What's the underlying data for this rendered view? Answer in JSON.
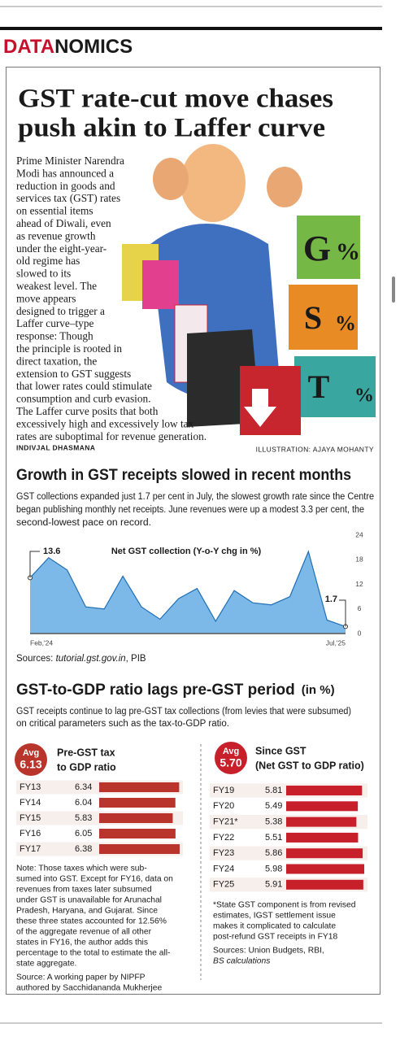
{
  "header": {
    "brand_red": "DATA",
    "brand_rest": "NOMICS"
  },
  "article": {
    "headline": [
      "GST rate-cut move chases",
      "push akin to Laffer curve"
    ],
    "body": [
      "Prime Minister Narendra",
      "Modi has announced a",
      "reduction in goods and",
      "services tax (GST) rates",
      "on essential items",
      "ahead of Diwali, even",
      "as revenue growth",
      "under the eight-year-",
      "old regime has",
      "slowed to its",
      "weakest level. The",
      "move appears",
      "designed to trigger a",
      "Laffer curve–type",
      "response: Though",
      "the principle is rooted in",
      "direct taxation, the",
      "extension to GST suggests",
      "that lower rates could stimulate",
      "consumption and curb evasion.",
      "The Laffer curve posits that both",
      "excessively high and excessively low tax",
      "rates are suboptimal for revenue generation."
    ],
    "byline": "INDIVJAL DHASMANA",
    "credit": "ILLUSTRATION: AJAYA MOHANTY"
  },
  "illustration": {
    "letters": [
      "G",
      "%",
      "S",
      "%",
      "T",
      "%"
    ]
  },
  "section1": {
    "title": "Growth in GST receipts slowed in recent months",
    "text": [
      "GST collections expanded just 1.7 per cent in July, the slowest growth rate since the Centre",
      "began publishing monthly net receipts. June revenues were up a modest 3.3 per cent, the",
      "second-lowest pace on record."
    ],
    "source": [
      "Sources: ",
      "tutorial.gst.gov.in",
      ", PIB"
    ]
  },
  "section2": {
    "title": "GST-to-GDP ratio lags pre-GST period",
    "unit": "(in %)",
    "text": [
      "GST receipts continue to lag pre-GST tax collections (from levies that were subsumed)",
      "on critical parameters such as the tax-to-GDP ratio."
    ]
  },
  "chart_data": [
    {
      "type": "area",
      "title": "Net GST collection (Y-o-Y chg in %)",
      "categories": [
        "Feb,'24",
        null,
        null,
        null,
        null,
        null,
        null,
        null,
        null,
        null,
        null,
        null,
        null,
        null,
        null,
        null,
        null,
        "Jul,'25"
      ],
      "values": [
        13.6,
        18.5,
        15.5,
        6.5,
        6,
        14,
        6.5,
        3.5,
        8.5,
        11,
        3,
        10.5,
        7.5,
        7,
        9,
        20,
        3.3,
        1.7
      ],
      "color": "#7db9e8",
      "line_color": "#1f6fb5",
      "ylim": [
        0,
        24
      ],
      "yticks": [
        0,
        6,
        12,
        18,
        24
      ],
      "grid": false
    },
    {
      "type": "hbar",
      "title": [
        "Pre-GST tax",
        "to GDP ratio"
      ],
      "average_label": "Avg",
      "average": 6.13,
      "categories": [
        "FY13",
        "FY14",
        "FY15",
        "FY16",
        "FY17"
      ],
      "values": [
        6.34,
        6.04,
        5.83,
        6.05,
        6.38
      ],
      "color": "#b9352c",
      "notes": [
        "Note: Those taxes which were sub-",
        "sumed into GST. Except for FY16, data on",
        "revenues from taxes later subsumed",
        "under GST is unavailable for Arunachal",
        "Pradesh, Haryana, and Gujarat. Since",
        "these three states accounted for 12.56%",
        "of the aggregate revenue of all other",
        "states in FY16, the author adds this",
        "percentage to the total to estimate the all-",
        "state aggregate."
      ],
      "source": [
        "Source:  A working paper by NIPFP",
        "authored by Sacchidananda Mukherjee"
      ]
    },
    {
      "type": "hbar",
      "title": [
        "Since GST",
        "(Net GST to GDP ratio)"
      ],
      "average_label": "Avg",
      "average": 5.7,
      "average_text": "5.70",
      "categories": [
        "FY19",
        "FY20",
        "FY21*",
        "FY22",
        "FY23",
        "FY24",
        "FY25"
      ],
      "values": [
        5.81,
        5.49,
        5.38,
        5.51,
        5.86,
        5.98,
        5.91
      ],
      "color": "#c8202a",
      "notes": [
        "*State GST component is from revised",
        "estimates,  IGST settlement issue",
        "makes it complicated to calculate",
        "post-refund GST receipts in FY18"
      ],
      "source": [
        "Sources: Union Budgets, RBI,",
        "BS calculations"
      ]
    }
  ]
}
